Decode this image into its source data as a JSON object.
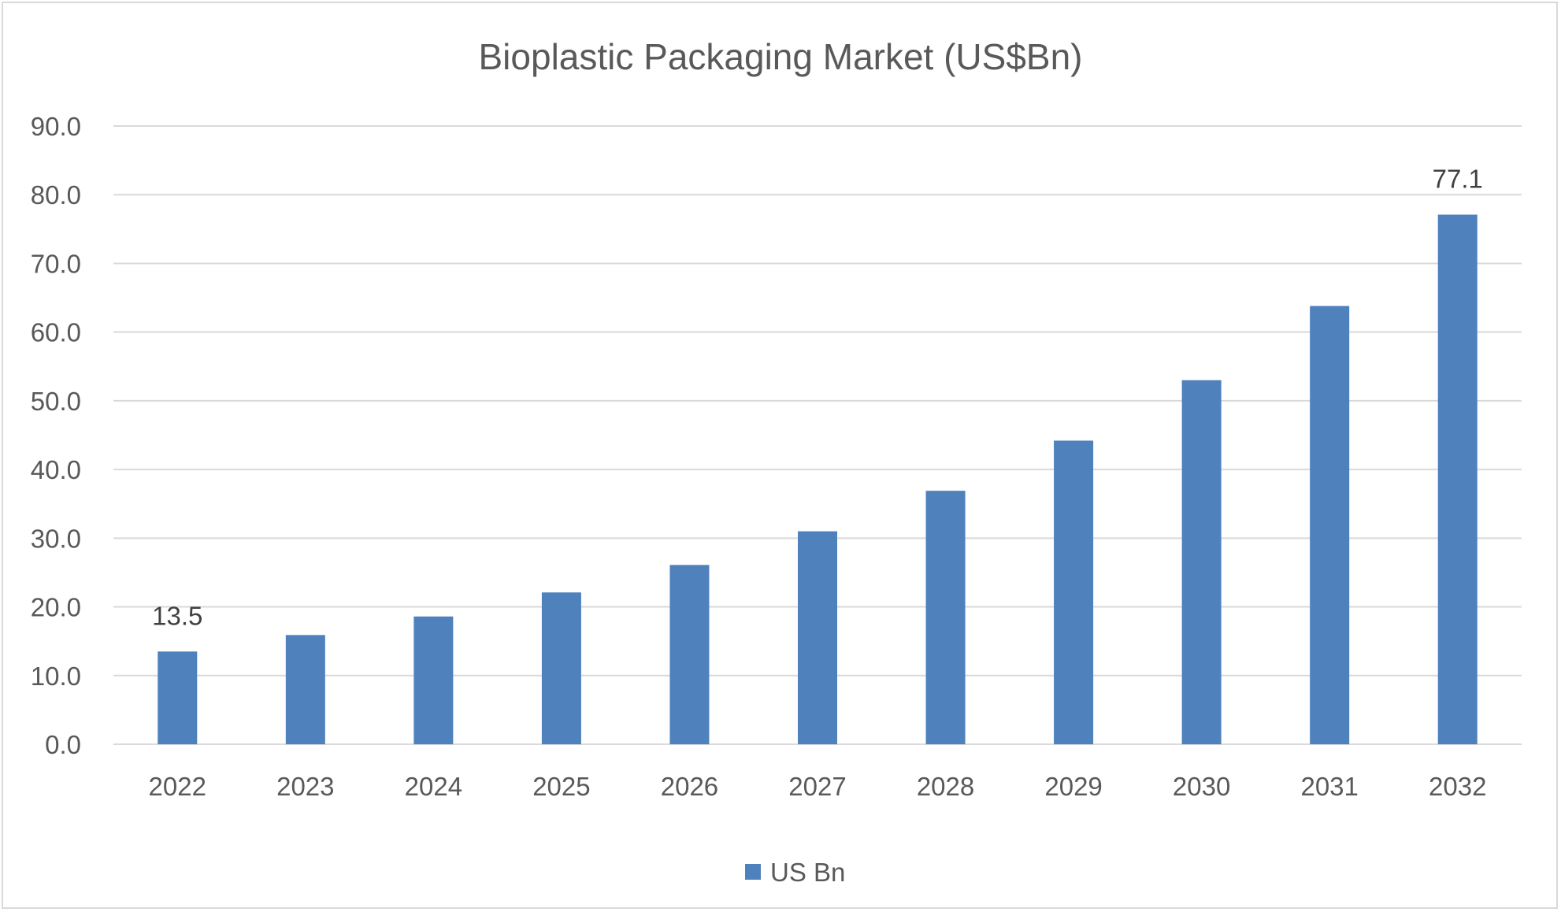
{
  "chart_data": {
    "type": "bar",
    "title": "Bioplastic Packaging Market (US$Bn)",
    "xlabel": "",
    "ylabel": "",
    "categories": [
      "2022",
      "2023",
      "2024",
      "2025",
      "2026",
      "2027",
      "2028",
      "2029",
      "2030",
      "2031",
      "2032"
    ],
    "series": [
      {
        "name": "US Bn",
        "color": "#4f81bd",
        "values": [
          13.5,
          15.9,
          18.6,
          22.1,
          26.1,
          31.0,
          36.9,
          44.2,
          53.0,
          63.8,
          77.1
        ]
      }
    ],
    "data_labels": [
      {
        "category": "2022",
        "text": "13.5"
      },
      {
        "category": "2032",
        "text": "77.1"
      }
    ],
    "ylim": [
      0,
      90
    ],
    "yticks": [
      "0.0",
      "10.0",
      "20.0",
      "30.0",
      "40.0",
      "50.0",
      "60.0",
      "70.0",
      "80.0",
      "90.0"
    ],
    "grid": true,
    "legend_position": "bottom"
  }
}
